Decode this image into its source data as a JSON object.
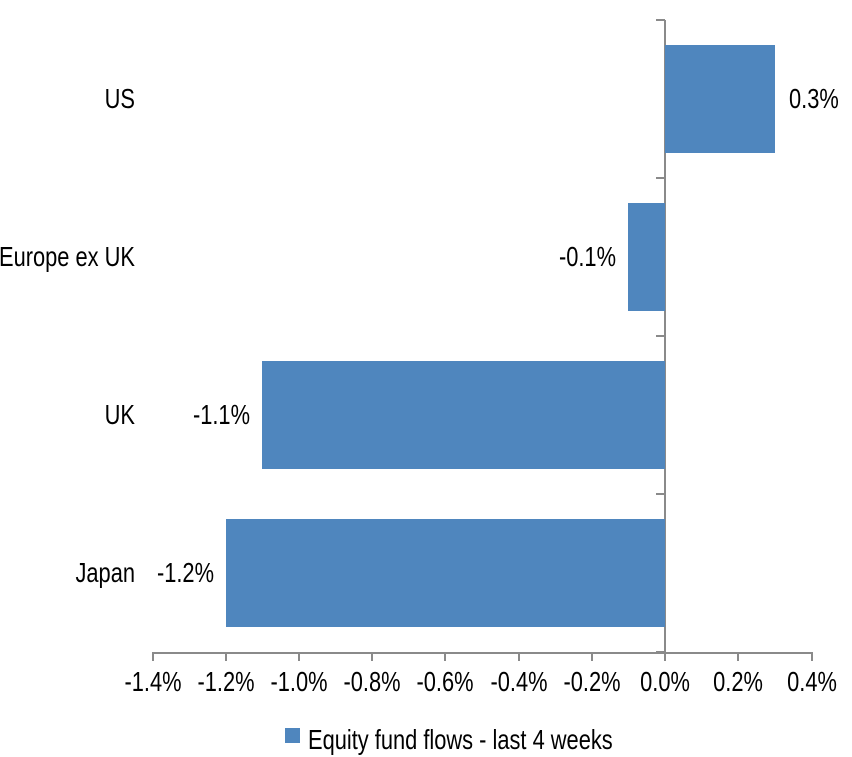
{
  "chart_data": {
    "type": "bar",
    "orientation": "horizontal",
    "title": "",
    "categories": [
      "US",
      "Europe ex UK",
      "UK",
      "Japan"
    ],
    "values": [
      0.3,
      -0.1,
      -1.1,
      -1.2
    ],
    "data_labels": [
      "0.3%",
      "-0.1%",
      "-1.1%",
      "-1.2%"
    ],
    "series_name": "Equity fund flows - last 4 weeks",
    "xlabel": "",
    "ylabel": "",
    "xlim": [
      -1.4,
      0.4
    ],
    "x_tick_values": [
      -1.4,
      -1.2,
      -1.0,
      -0.8,
      -0.6,
      -0.4,
      -0.2,
      0.0,
      0.2,
      0.4
    ],
    "x_tick_labels": [
      "-1.4%",
      "-1.2%",
      "-1.0%",
      "-0.8%",
      "-0.6%",
      "-0.4%",
      "-0.2%",
      "0.0%",
      "0.2%",
      "0.4%"
    ],
    "grid": false,
    "legend_position": "bottom",
    "colors": {
      "bar": "#4F86BE",
      "axis": "#8A8A8A",
      "text": "#000000",
      "background": "#FFFFFF"
    }
  },
  "legend": {
    "items": [
      {
        "label": "Equity fund flows - last 4 weeks",
        "swatch_color": "#4F86BE"
      }
    ]
  }
}
